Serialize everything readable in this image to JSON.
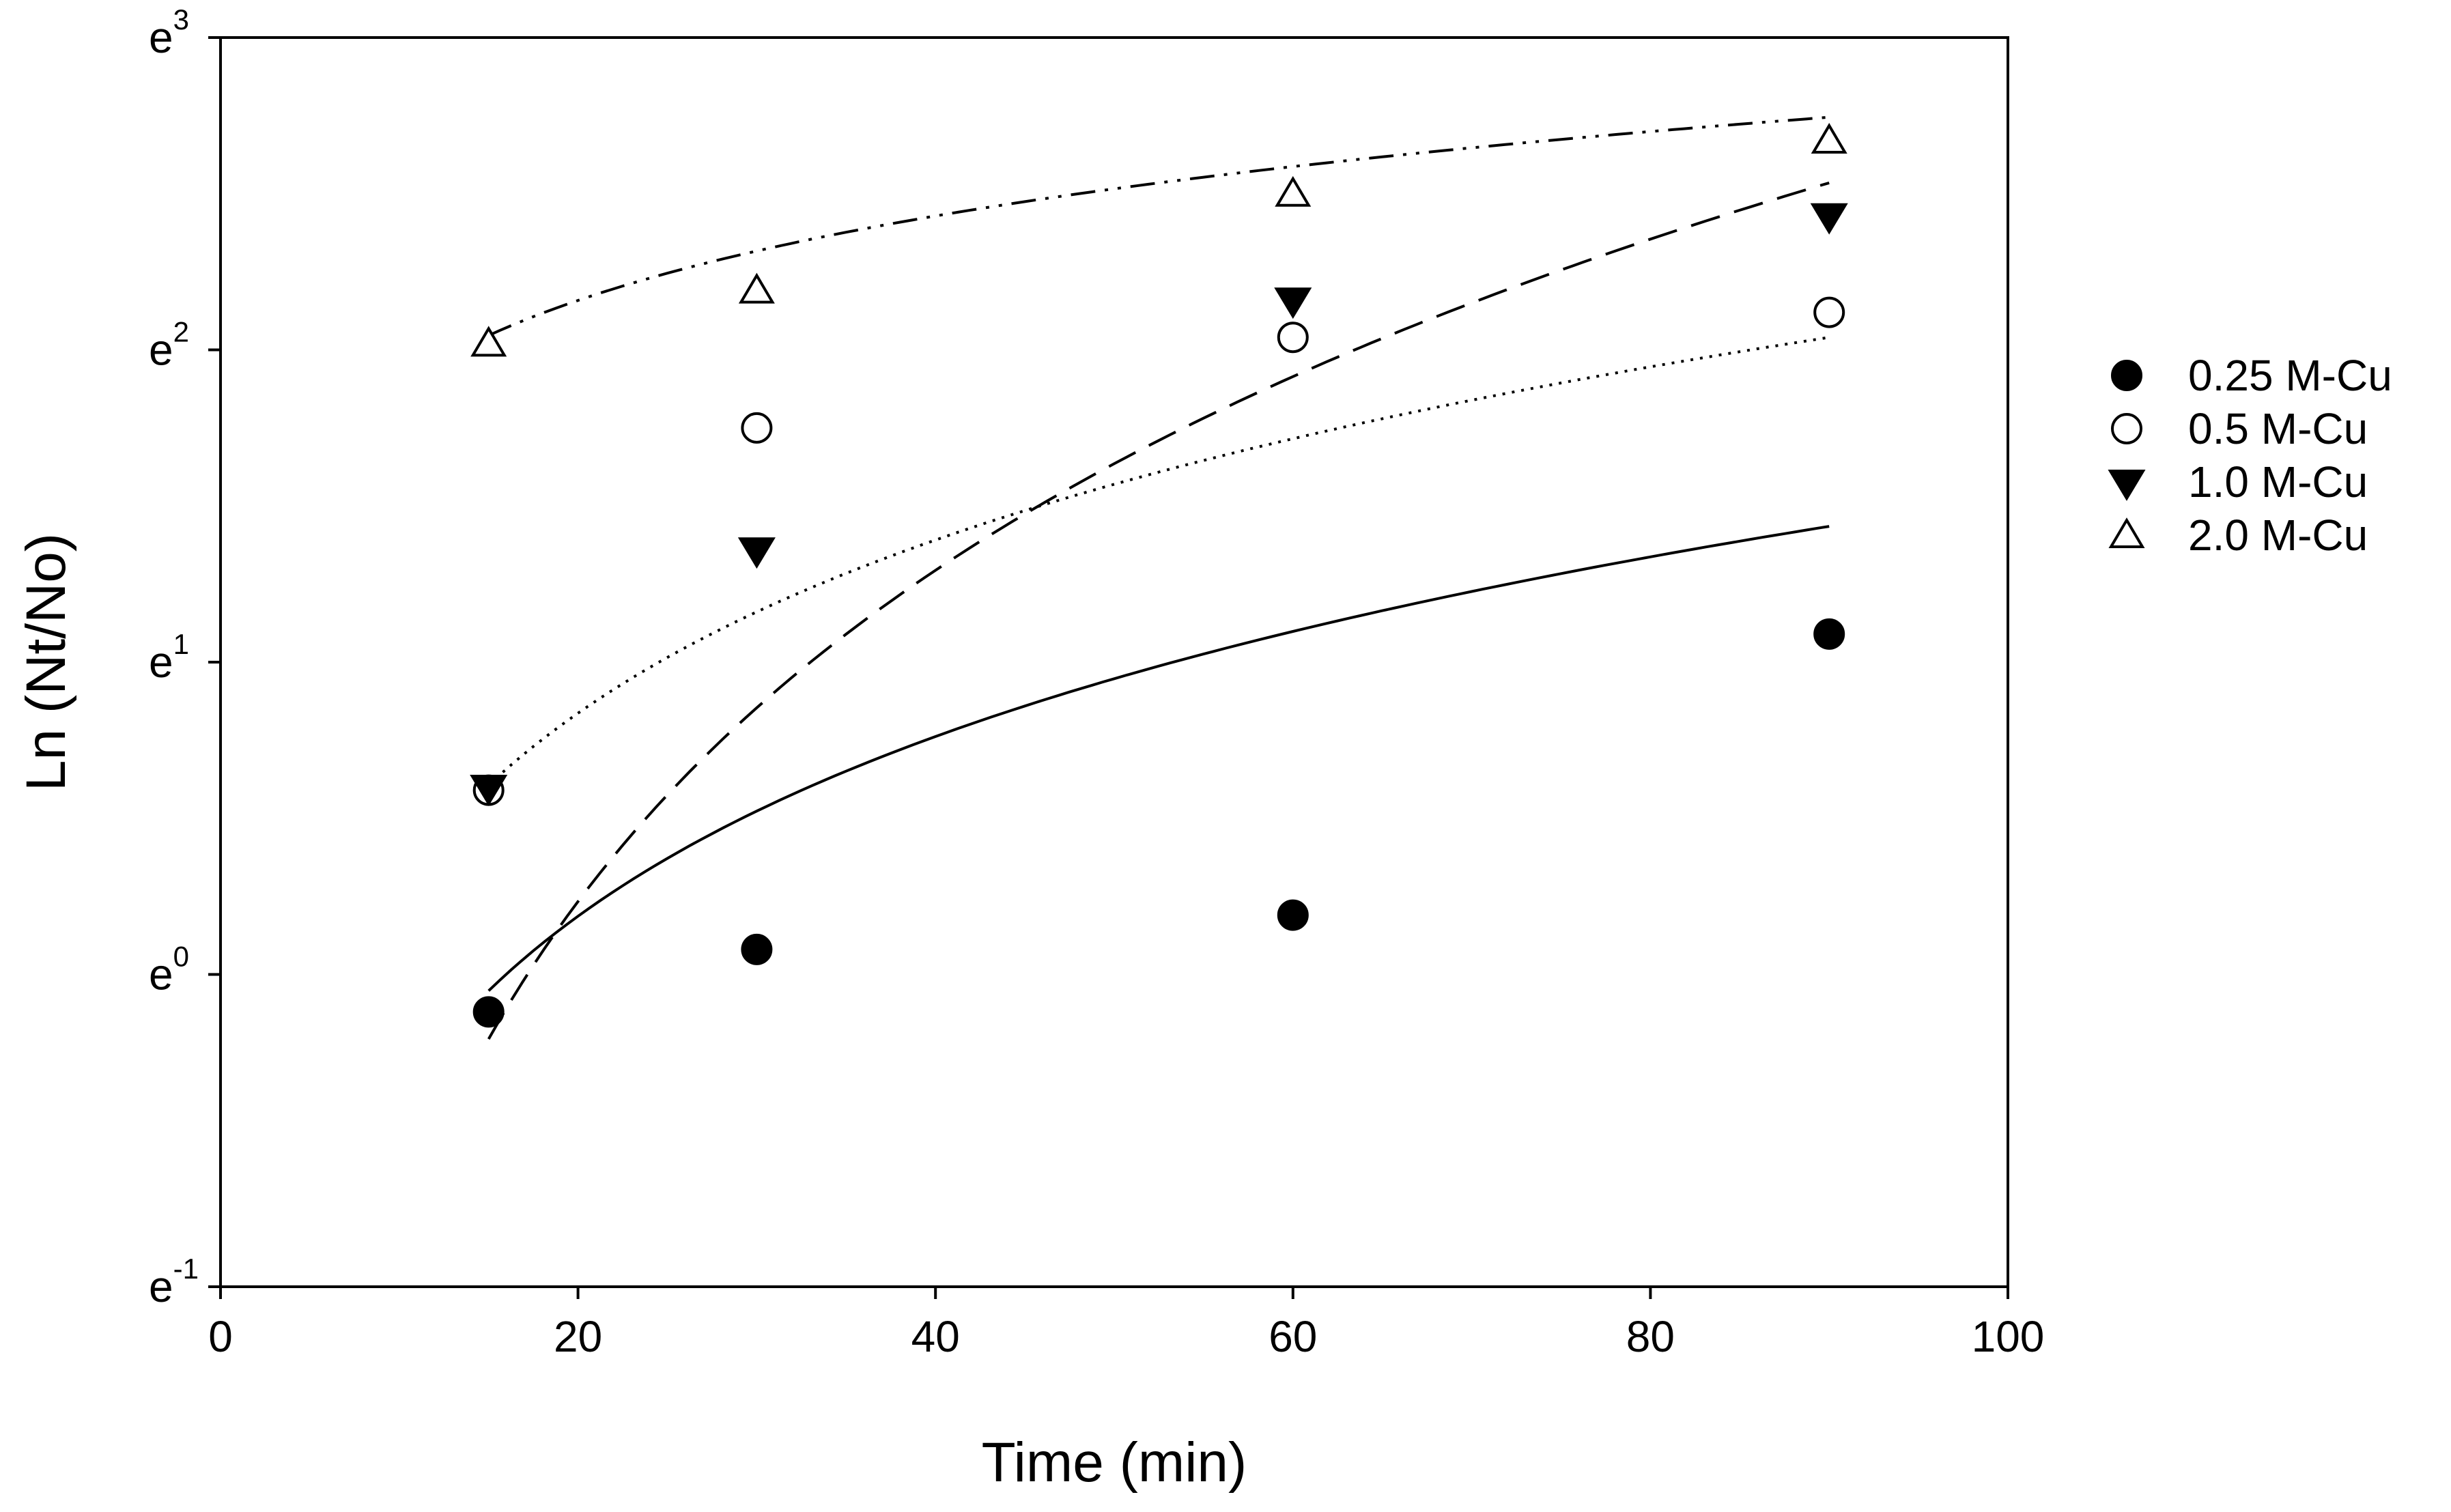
{
  "chart_data": {
    "type": "scatter",
    "title": "",
    "xlabel": "Time (min)",
    "ylabel": "Ln (Nt/No)",
    "xlim": [
      0,
      100
    ],
    "ylim": [
      -1,
      3
    ],
    "yscale": "exponent-labels",
    "xticks": [
      "0",
      "20",
      "40",
      "60",
      "80",
      "100"
    ],
    "yticks": [
      {
        "base": "e",
        "exp": "-1",
        "value": -1
      },
      {
        "base": "e",
        "exp": "0",
        "value": 0
      },
      {
        "base": "e",
        "exp": "1",
        "value": 1
      },
      {
        "base": "e",
        "exp": "2",
        "value": 2
      },
      {
        "base": "e",
        "exp": "3",
        "value": 3
      }
    ],
    "legend_position": "right",
    "series": [
      {
        "name": "0.25 M-Cu",
        "marker": "filled-circle",
        "line": "solid",
        "x": [
          15,
          30,
          60,
          90
        ],
        "y": [
          -0.12,
          0.08,
          0.19,
          1.09
        ],
        "fit": {
          "a": -2.3,
          "b": 0.83
        }
      },
      {
        "name": "0.5 M-Cu",
        "marker": "open-circle",
        "line": "dotted",
        "x": [
          15,
          30,
          60,
          90
        ],
        "y": [
          0.59,
          1.75,
          2.04,
          2.12
        ],
        "fit": {
          "a": -1.56,
          "b": 0.8
        }
      },
      {
        "name": "1.0 M-Cu",
        "marker": "filled-triangle-down",
        "line": "dashed",
        "x": [
          15,
          30,
          60,
          90
        ],
        "y": [
          0.6,
          1.36,
          2.16,
          2.43
        ],
        "fit": {
          "a": -4.35,
          "b": 1.53
        }
      },
      {
        "name": "2.0 M-Cu",
        "marker": "open-triangle-up",
        "line": "dash-dot-dot",
        "x": [
          15,
          30,
          60,
          90
        ],
        "y": [
          2.02,
          2.19,
          2.5,
          2.67
        ],
        "fit": {
          "a": 0.99,
          "b": 0.39
        }
      }
    ]
  }
}
